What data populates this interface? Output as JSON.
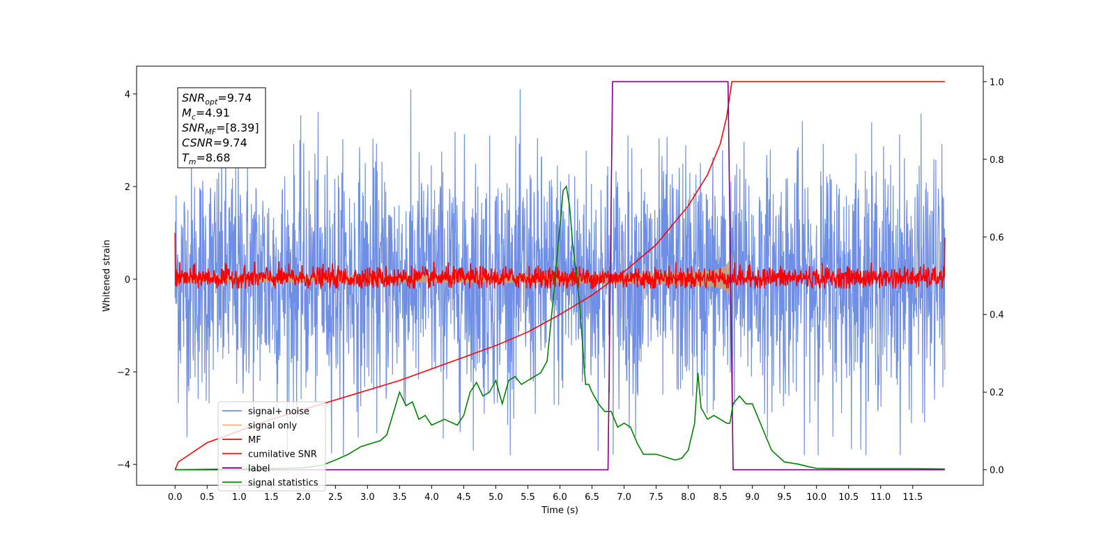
{
  "chart_data": {
    "type": "line",
    "xlabel": "Time (s)",
    "ylabel": "Whitened strain",
    "xlim": [
      -0.6,
      12.6
    ],
    "ylim": [
      -4.45,
      4.6
    ],
    "y2lim": [
      -0.04,
      1.04
    ],
    "grid": false,
    "legend_position": "lower-left",
    "x_ticks": [
      "0.0",
      "0.5",
      "1.0",
      "1.5",
      "2.0",
      "2.5",
      "3.0",
      "3.5",
      "4.0",
      "4.5",
      "5.0",
      "5.5",
      "6.0",
      "6.5",
      "7.0",
      "7.5",
      "8.0",
      "8.5",
      "9.0",
      "9.5",
      "10.0",
      "10.5",
      "11.0",
      "11.5"
    ],
    "y_ticks": [
      "4",
      "2",
      "0",
      "−2",
      "−4"
    ],
    "y2_ticks": [
      "1.0",
      "0.8",
      "0.6",
      "0.4",
      "0.2",
      "0.0"
    ],
    "annotation": {
      "lines": [
        {
          "base": "SNR",
          "sub": "opt",
          "value": "=9.74"
        },
        {
          "base": "M",
          "sub": "c",
          "value": "=4.91"
        },
        {
          "base": "SNR",
          "sub": "MF",
          "value": "=[8.39]"
        },
        {
          "base": "CSNR",
          "sub": "",
          "value": "=9.74"
        },
        {
          "base": "T",
          "sub": "m",
          "value": "=8.68"
        }
      ]
    },
    "series": [
      {
        "name": "signal+ noise",
        "color": "#6f8ee6",
        "axis": "left",
        "kind": "noise",
        "amplitude": 1.3,
        "x_range": [
          0,
          12
        ]
      },
      {
        "name": "signal only",
        "color": "#f5b36a",
        "axis": "left",
        "kind": "chirp_envelope",
        "merger_time": 8.68,
        "x_range": [
          0,
          12
        ]
      },
      {
        "name": "MF",
        "color": "#ff0000",
        "axis": "left",
        "kind": "noise",
        "amplitude": 0.12,
        "x_range": [
          0,
          12
        ]
      },
      {
        "name": "cumilative SNR",
        "color": "#ff0000",
        "axis": "right",
        "x": [
          0,
          0.05,
          0.5,
          1.0,
          1.5,
          2.0,
          2.5,
          3.0,
          3.5,
          4.0,
          4.5,
          5.0,
          5.5,
          6.0,
          6.5,
          7.0,
          7.5,
          8.0,
          8.3,
          8.5,
          8.6,
          8.68,
          9.0,
          10.0,
          11.0,
          11.5,
          12.0
        ],
        "values": [
          0.0,
          0.02,
          0.07,
          0.1,
          0.13,
          0.155,
          0.18,
          0.205,
          0.23,
          0.26,
          0.29,
          0.32,
          0.355,
          0.4,
          0.45,
          0.51,
          0.58,
          0.68,
          0.76,
          0.84,
          0.91,
          1.0,
          1.0,
          1.0,
          1.0,
          1.0,
          1.0
        ]
      },
      {
        "name": "label",
        "color": "#800080",
        "axis": "right",
        "x": [
          0,
          6.75,
          6.82,
          8.62,
          8.7,
          12.0
        ],
        "values": [
          0.0,
          0.0,
          1.0,
          1.0,
          0.0,
          0.0
        ]
      },
      {
        "name": "signal statistics",
        "color": "#008000",
        "axis": "right",
        "x": [
          0,
          0.5,
          1.0,
          1.5,
          2.0,
          2.3,
          2.5,
          2.7,
          2.9,
          3.0,
          3.2,
          3.3,
          3.5,
          3.6,
          3.7,
          3.8,
          3.9,
          4.0,
          4.2,
          4.4,
          4.5,
          4.6,
          4.7,
          4.8,
          4.9,
          5.0,
          5.1,
          5.2,
          5.3,
          5.4,
          5.5,
          5.6,
          5.7,
          5.8,
          5.9,
          6.0,
          6.05,
          6.1,
          6.15,
          6.2,
          6.3,
          6.4,
          6.45,
          6.5,
          6.6,
          6.7,
          6.8,
          6.9,
          7.0,
          7.1,
          7.2,
          7.3,
          7.5,
          7.7,
          7.8,
          7.9,
          8.0,
          8.1,
          8.15,
          8.2,
          8.3,
          8.4,
          8.5,
          8.6,
          8.65,
          8.7,
          8.8,
          8.9,
          9.0,
          9.1,
          9.2,
          9.3,
          9.5,
          9.7,
          9.9,
          10.0,
          10.5,
          11.0,
          11.5,
          12.0
        ],
        "values": [
          0.0,
          0.001,
          0.002,
          0.003,
          0.005,
          0.012,
          0.025,
          0.04,
          0.06,
          0.065,
          0.075,
          0.09,
          0.2,
          0.165,
          0.175,
          0.13,
          0.14,
          0.115,
          0.13,
          0.115,
          0.14,
          0.2,
          0.225,
          0.19,
          0.2,
          0.23,
          0.17,
          0.23,
          0.24,
          0.22,
          0.23,
          0.24,
          0.25,
          0.28,
          0.45,
          0.63,
          0.72,
          0.73,
          0.68,
          0.58,
          0.44,
          0.22,
          0.22,
          0.2,
          0.17,
          0.15,
          0.15,
          0.11,
          0.12,
          0.11,
          0.07,
          0.04,
          0.04,
          0.03,
          0.025,
          0.03,
          0.05,
          0.12,
          0.25,
          0.16,
          0.13,
          0.14,
          0.13,
          0.12,
          0.12,
          0.17,
          0.19,
          0.17,
          0.17,
          0.13,
          0.09,
          0.05,
          0.02,
          0.015,
          0.007,
          0.004,
          0.003,
          0.003,
          0.003,
          0.002
        ]
      }
    ]
  }
}
